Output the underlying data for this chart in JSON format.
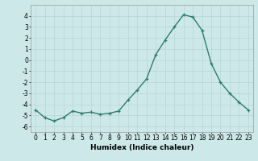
{
  "x": [
    0,
    1,
    2,
    3,
    4,
    5,
    6,
    7,
    8,
    9,
    10,
    11,
    12,
    13,
    14,
    15,
    16,
    17,
    18,
    19,
    20,
    21,
    22,
    23
  ],
  "y": [
    -4.5,
    -5.2,
    -5.5,
    -5.2,
    -4.6,
    -4.8,
    -4.7,
    -4.9,
    -4.8,
    -4.6,
    -3.6,
    -2.7,
    -1.7,
    0.5,
    1.8,
    3.0,
    4.1,
    3.9,
    2.7,
    -0.3,
    -2.0,
    -3.0,
    -3.8,
    -4.5
  ],
  "line_color": "#2e7d6e",
  "marker": "+",
  "marker_size": 3,
  "xlabel": "Humidex (Indice chaleur)",
  "xlim": [
    -0.5,
    23.5
  ],
  "ylim": [
    -6.5,
    5.0
  ],
  "yticks": [
    -6,
    -5,
    -4,
    -3,
    -2,
    -1,
    0,
    1,
    2,
    3,
    4
  ],
  "xticks": [
    0,
    1,
    2,
    3,
    4,
    5,
    6,
    7,
    8,
    9,
    10,
    11,
    12,
    13,
    14,
    15,
    16,
    17,
    18,
    19,
    20,
    21,
    22,
    23
  ],
  "background_color": "#cde8e8",
  "grid_color": "#b8d4d4",
  "tick_fontsize": 5.5,
  "xlabel_fontsize": 6.5,
  "linewidth": 1.0
}
